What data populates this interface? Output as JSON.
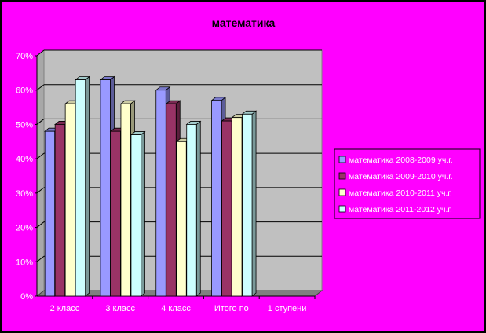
{
  "chart_data": {
    "type": "bar",
    "title": "математика",
    "xlabel": "",
    "ylabel": "",
    "ylim": [
      0,
      70
    ],
    "yticks": [
      "0%",
      "10%",
      "20%",
      "30%",
      "40%",
      "50%",
      "60%",
      "70%"
    ],
    "grid": true,
    "legend_position": "right",
    "categories": [
      "2 класс",
      "3 класс",
      "4 класс",
      "Итого по",
      "1 ступени"
    ],
    "series": [
      {
        "name": "математика 2008-2009 уч.г.",
        "color": "#9999ff",
        "values": [
          48,
          63,
          60,
          57,
          null
        ]
      },
      {
        "name": "математика 2009-2010 уч.г.",
        "color": "#993366",
        "values": [
          50,
          48,
          56,
          51,
          null
        ]
      },
      {
        "name": "математика 2010-2011 уч.г.",
        "color": "#ffffcc",
        "values": [
          56,
          56,
          45,
          52,
          null
        ]
      },
      {
        "name": "математика 2011-2012 уч.г.",
        "color": "#ccffff",
        "values": [
          63,
          47,
          50,
          53,
          null
        ]
      }
    ]
  }
}
